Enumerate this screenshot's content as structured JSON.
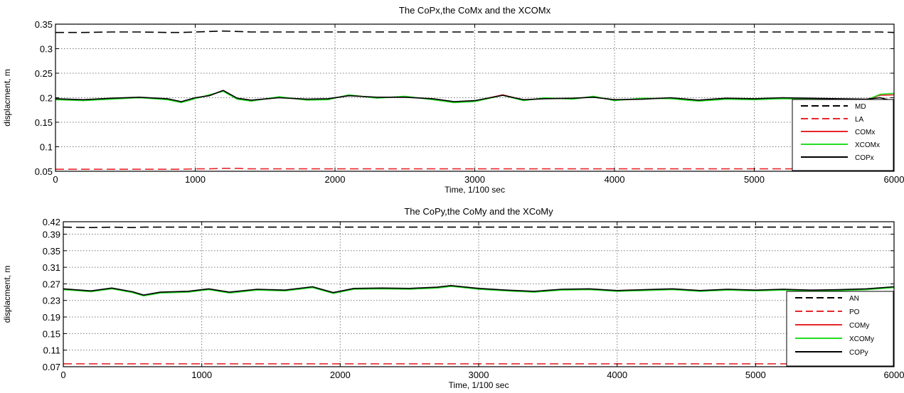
{
  "chart_data": [
    {
      "type": "line",
      "title": "The CoPx,the CoMx and the XCOMx",
      "xlabel": "Time, 1/100 sec",
      "ylabel": "displacment, m",
      "xlim": [
        0,
        6000
      ],
      "ylim": [
        0.05,
        0.35
      ],
      "xticks": [
        "0",
        "1000",
        "2000",
        "3000",
        "4000",
        "5000",
        "6000"
      ],
      "yticks": [
        "0.05",
        "0.1",
        "0.15",
        "0.2",
        "0.25",
        "0.3",
        "0.35"
      ],
      "grid": true,
      "legend_position": "bottom-right",
      "x": [
        0,
        200,
        400,
        600,
        800,
        900,
        1000,
        1100,
        1200,
        1300,
        1400,
        1600,
        1800,
        1950,
        2100,
        2300,
        2500,
        2700,
        2850,
        3000,
        3200,
        3350,
        3500,
        3700,
        3850,
        4000,
        4200,
        4400,
        4600,
        4800,
        5000,
        5200,
        5400,
        5600,
        5800,
        5900,
        6000
      ],
      "series": [
        {
          "name": "MD",
          "style": "dashed",
          "color": "#000000",
          "values": [
            0.333,
            0.333,
            0.334,
            0.334,
            0.333,
            0.333,
            0.334,
            0.335,
            0.336,
            0.335,
            0.334,
            0.334,
            0.334,
            0.334,
            0.334,
            0.334,
            0.334,
            0.334,
            0.334,
            0.334,
            0.334,
            0.334,
            0.334,
            0.334,
            0.334,
            0.334,
            0.334,
            0.334,
            0.334,
            0.334,
            0.334,
            0.334,
            0.334,
            0.334,
            0.334,
            0.334,
            0.333
          ]
        },
        {
          "name": "LA",
          "style": "dashed",
          "color": "#e8252a",
          "values": [
            0.054,
            0.054,
            0.054,
            0.054,
            0.054,
            0.054,
            0.055,
            0.055,
            0.056,
            0.056,
            0.055,
            0.055,
            0.055,
            0.055,
            0.055,
            0.055,
            0.055,
            0.055,
            0.055,
            0.055,
            0.055,
            0.055,
            0.055,
            0.055,
            0.055,
            0.055,
            0.055,
            0.055,
            0.055,
            0.055,
            0.055,
            0.055,
            0.055,
            0.055,
            0.055,
            0.055,
            0.054
          ]
        },
        {
          "name": "COMx",
          "style": "solid",
          "color": "#e8252a",
          "values": [
            0.197,
            0.195,
            0.198,
            0.2,
            0.197,
            0.191,
            0.199,
            0.205,
            0.214,
            0.198,
            0.194,
            0.201,
            0.196,
            0.197,
            0.205,
            0.2,
            0.202,
            0.197,
            0.191,
            0.193,
            0.206,
            0.195,
            0.199,
            0.198,
            0.202,
            0.195,
            0.198,
            0.199,
            0.194,
            0.198,
            0.197,
            0.199,
            0.198,
            0.197,
            0.196,
            0.205,
            0.206
          ]
        },
        {
          "name": "XCOMx",
          "style": "solid",
          "color": "#22dd22",
          "values": [
            0.196,
            0.194,
            0.197,
            0.2,
            0.196,
            0.19,
            0.198,
            0.206,
            0.213,
            0.197,
            0.193,
            0.202,
            0.195,
            0.196,
            0.206,
            0.199,
            0.203,
            0.196,
            0.19,
            0.192,
            0.205,
            0.194,
            0.2,
            0.197,
            0.203,
            0.194,
            0.199,
            0.198,
            0.193,
            0.197,
            0.196,
            0.198,
            0.197,
            0.196,
            0.195,
            0.207,
            0.209
          ]
        },
        {
          "name": "COPx",
          "style": "solid",
          "color": "#000000",
          "values": [
            0.198,
            0.196,
            0.199,
            0.201,
            0.198,
            0.192,
            0.2,
            0.204,
            0.215,
            0.199,
            0.195,
            0.2,
            0.197,
            0.198,
            0.204,
            0.201,
            0.201,
            0.198,
            0.192,
            0.194,
            0.205,
            0.196,
            0.198,
            0.199,
            0.201,
            0.196,
            0.197,
            0.2,
            0.195,
            0.199,
            0.198,
            0.2,
            0.199,
            0.198,
            0.197,
            0.2,
            0.193
          ]
        }
      ]
    },
    {
      "type": "line",
      "title": "The CoPy,the CoMy and the XCoMy",
      "xlabel": "Time, 1/100 sec",
      "ylabel": "displacment, m",
      "xlim": [
        0,
        6000
      ],
      "ylim": [
        0.07,
        0.42
      ],
      "xticks": [
        "0",
        "1000",
        "2000",
        "3000",
        "4000",
        "5000",
        "6000"
      ],
      "yticks": [
        "0.07",
        "0.11",
        "0.15",
        "0.19",
        "0.23",
        "0.27",
        "0.31",
        "0.35",
        "0.39",
        "0.42"
      ],
      "grid": true,
      "legend_position": "bottom-right",
      "x": [
        0,
        200,
        350,
        500,
        580,
        700,
        900,
        1050,
        1200,
        1400,
        1600,
        1800,
        1950,
        2100,
        2300,
        2500,
        2700,
        2800,
        3000,
        3200,
        3400,
        3600,
        3800,
        4000,
        4200,
        4400,
        4600,
        4800,
        5000,
        5200,
        5400,
        5600,
        5800,
        6000
      ],
      "series": [
        {
          "name": "AN",
          "style": "dashed",
          "color": "#000000",
          "values": [
            0.407,
            0.406,
            0.407,
            0.406,
            0.407,
            0.407,
            0.407,
            0.407,
            0.407,
            0.407,
            0.407,
            0.407,
            0.407,
            0.407,
            0.407,
            0.407,
            0.407,
            0.407,
            0.407,
            0.407,
            0.407,
            0.407,
            0.407,
            0.407,
            0.407,
            0.407,
            0.407,
            0.407,
            0.407,
            0.407,
            0.407,
            0.407,
            0.407,
            0.407
          ]
        },
        {
          "name": "PO",
          "style": "dashed",
          "color": "#e8252a",
          "values": [
            0.077,
            0.077,
            0.077,
            0.077,
            0.077,
            0.077,
            0.077,
            0.077,
            0.077,
            0.077,
            0.077,
            0.077,
            0.077,
            0.077,
            0.077,
            0.077,
            0.077,
            0.077,
            0.077,
            0.077,
            0.077,
            0.077,
            0.077,
            0.077,
            0.077,
            0.077,
            0.077,
            0.077,
            0.077,
            0.077,
            0.077,
            0.077,
            0.077,
            0.077
          ]
        },
        {
          "name": "COMy",
          "style": "solid",
          "color": "#e8252a",
          "values": [
            0.257,
            0.252,
            0.259,
            0.25,
            0.242,
            0.249,
            0.251,
            0.257,
            0.249,
            0.256,
            0.254,
            0.262,
            0.248,
            0.258,
            0.259,
            0.258,
            0.261,
            0.265,
            0.258,
            0.254,
            0.251,
            0.256,
            0.257,
            0.253,
            0.255,
            0.257,
            0.253,
            0.256,
            0.254,
            0.256,
            0.254,
            0.255,
            0.257,
            0.262
          ]
        },
        {
          "name": "XCOMy",
          "style": "solid",
          "color": "#22dd22",
          "values": [
            0.256,
            0.251,
            0.258,
            0.249,
            0.241,
            0.248,
            0.25,
            0.256,
            0.248,
            0.255,
            0.253,
            0.261,
            0.247,
            0.257,
            0.258,
            0.257,
            0.26,
            0.264,
            0.257,
            0.253,
            0.25,
            0.255,
            0.256,
            0.252,
            0.254,
            0.256,
            0.252,
            0.255,
            0.253,
            0.255,
            0.253,
            0.254,
            0.256,
            0.261
          ]
        },
        {
          "name": "COPy",
          "style": "solid",
          "color": "#000000",
          "values": [
            0.258,
            0.253,
            0.26,
            0.251,
            0.243,
            0.25,
            0.252,
            0.258,
            0.25,
            0.257,
            0.255,
            0.263,
            0.249,
            0.259,
            0.26,
            0.259,
            0.262,
            0.266,
            0.259,
            0.255,
            0.252,
            0.257,
            0.258,
            0.254,
            0.256,
            0.258,
            0.254,
            0.257,
            0.255,
            0.257,
            0.255,
            0.256,
            0.258,
            0.263
          ]
        }
      ]
    }
  ]
}
